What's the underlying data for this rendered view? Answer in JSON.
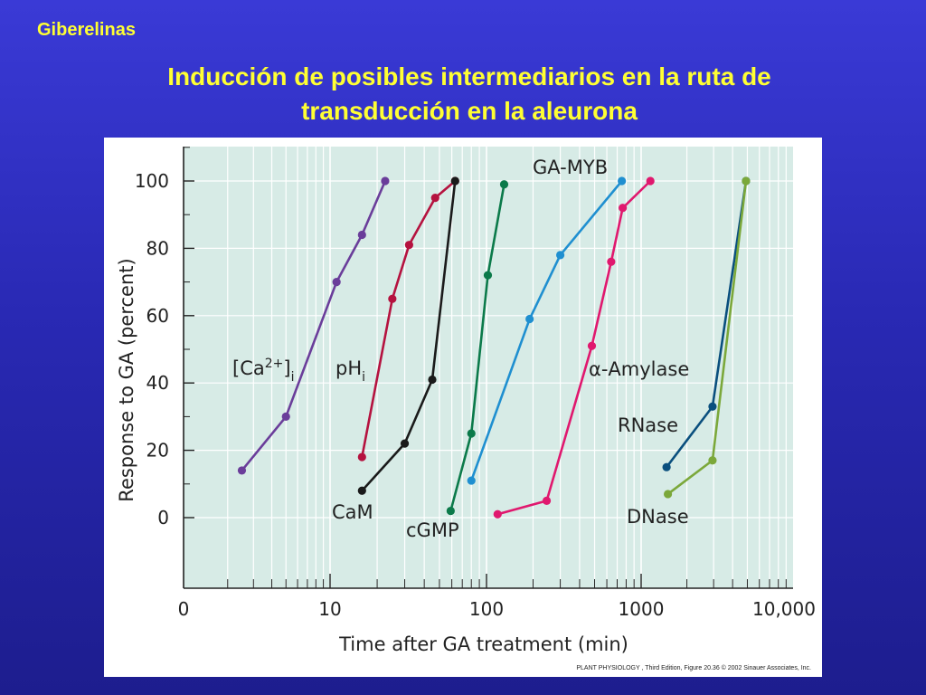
{
  "slide": {
    "header": "Giberelinas",
    "title_line1": "Inducción de posibles intermediarios en la ruta de",
    "title_line2": "transducción en la aleurona",
    "credit": "PLANT PHYSIOLOGY , Third Edition, Figure 20.36  © 2002 Sinauer Associates, Inc."
  },
  "chart_data": {
    "type": "line",
    "title": "",
    "xlabel": "Time after GA treatment (min)",
    "ylabel": "Response to GA (percent)",
    "x_scale": "log",
    "x_ticks": [
      {
        "label": "0",
        "value": null
      },
      {
        "label": "10",
        "value": 10
      },
      {
        "label": "100",
        "value": 100
      },
      {
        "label": "1000",
        "value": 1000
      },
      {
        "label": "10,000",
        "value": 10000
      }
    ],
    "y_ticks": [
      0,
      20,
      40,
      60,
      80,
      100
    ],
    "ylim": [
      -22,
      112
    ],
    "grid": true,
    "colors": {
      "plot_background": "#d7ebe6",
      "grid": "#ffffff",
      "axis": "#222222"
    },
    "series": [
      {
        "name": "[Ca2+]i",
        "label_main": "[Ca",
        "label_sup": "2+",
        "label_bracket": "]",
        "label_sub": "i",
        "color": "#6a3d9a",
        "x": [
          2.5,
          5,
          11,
          16,
          22.5
        ],
        "y": [
          14,
          30,
          70,
          84,
          100
        ]
      },
      {
        "name": "pHi",
        "label_main": "pH",
        "label_sub": "i",
        "color": "#b5123f",
        "x": [
          16,
          25,
          32,
          47,
          63
        ],
        "y": [
          18,
          65,
          81,
          95,
          100
        ]
      },
      {
        "name": "CaM",
        "label": "CaM",
        "color": "#1a1a1a",
        "x": [
          16,
          30,
          45,
          63
        ],
        "y": [
          8,
          22,
          41,
          100
        ]
      },
      {
        "name": "cGMP",
        "label": "cGMP",
        "color": "#0b7a4a",
        "x": [
          59,
          80,
          102,
          130
        ],
        "y": [
          2,
          25,
          72,
          99
        ]
      },
      {
        "name": "GA-MYB",
        "label": "GA-MYB",
        "color": "#1f8fd0",
        "x": [
          80,
          190,
          300,
          750
        ],
        "y": [
          11,
          59,
          78,
          100
        ]
      },
      {
        "name": "α-Amylase",
        "label": "α-Amylase",
        "color": "#e0186e",
        "x": [
          118,
          245,
          480,
          640,
          760,
          1150
        ],
        "y": [
          1,
          5,
          51,
          76,
          92,
          100
        ]
      },
      {
        "name": "RNase",
        "label": "RNase",
        "color": "#0a4f7e",
        "x": [
          1470,
          2950,
          4900
        ],
        "y": [
          15,
          33,
          100
        ]
      },
      {
        "name": "DNase",
        "label": "DNase",
        "color": "#7ba83a",
        "x": [
          1500,
          2950,
          4900
        ],
        "y": [
          7,
          17,
          100
        ]
      }
    ]
  }
}
